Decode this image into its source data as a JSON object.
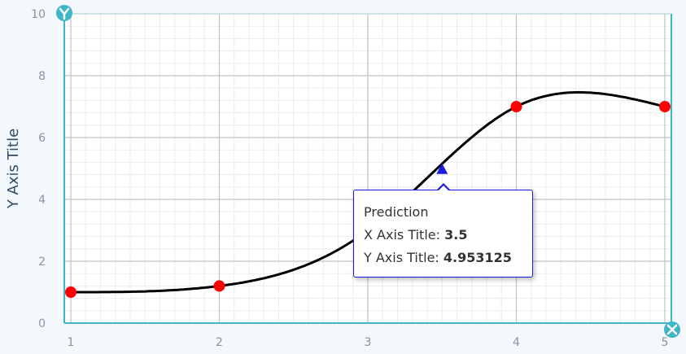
{
  "chart_data": {
    "type": "line",
    "title": "",
    "xlabel": "",
    "ylabel": "Y Axis Title",
    "xlim": [
      1,
      5
    ],
    "ylim": [
      0,
      10
    ],
    "x_ticks": [
      "1",
      "2",
      "3",
      "4",
      "5"
    ],
    "y_ticks": [
      "0",
      "2",
      "4",
      "6",
      "8",
      "10"
    ],
    "grid": true,
    "legend": "none",
    "series": [
      {
        "x": [
          1,
          2,
          3,
          4,
          5
        ],
        "values": [
          1,
          1.2,
          3,
          7,
          7
        ],
        "color": "#000000",
        "marker_color": "#ff0000"
      }
    ],
    "highlight_point": {
      "x": 3.5,
      "y": 4.953125,
      "color": "#1a1ae0"
    },
    "tooltip": {
      "title": "Prediction",
      "x_label": "X Axis Title:",
      "x_value": "3.5",
      "y_label": "Y Axis Title:",
      "y_value": "4.953125"
    },
    "axis_icons": {
      "x": "x-axis-cross-icon",
      "y": "y-axis-icon",
      "color": "#3fb6c6"
    }
  }
}
